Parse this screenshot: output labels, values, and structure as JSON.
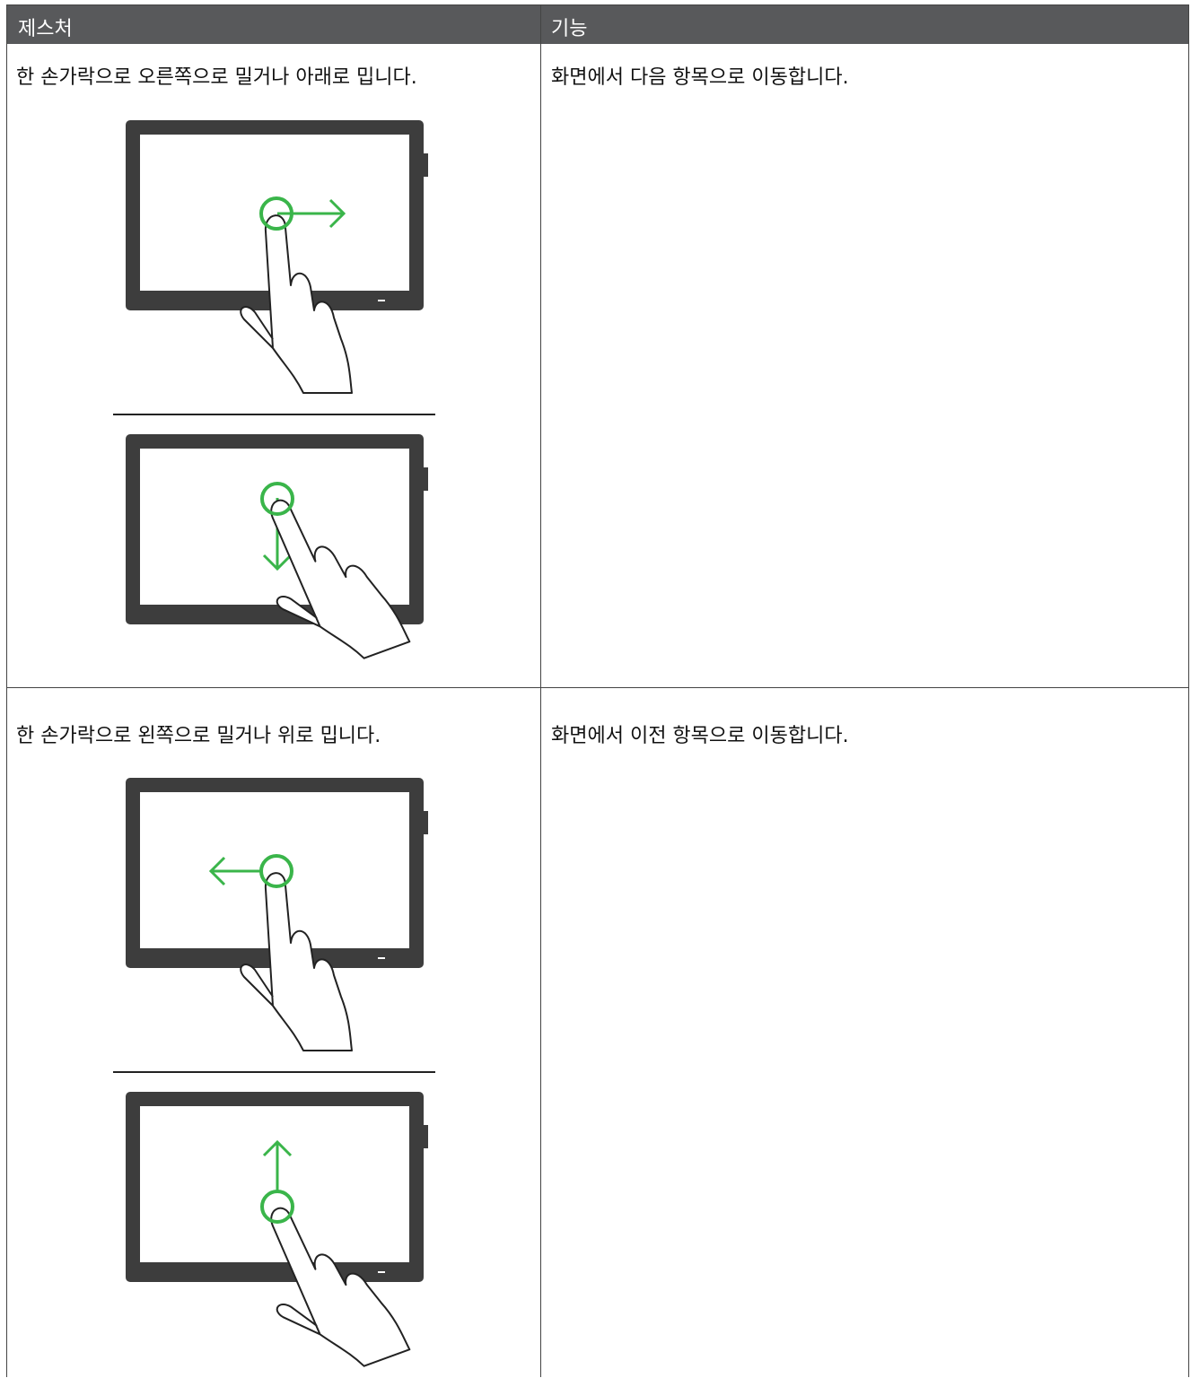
{
  "table": {
    "header": [
      "제스처",
      "기능"
    ],
    "rows": [
      [
        "한 손가락으로 오른쪽으로 밀거나 아래로 밉니다.",
        "화면에서 다음 항목으로 이동합니다."
      ],
      [
        "한 손가락으로 왼쪽으로 밀거나 위로 밉니다.",
        "화면에서 이전 항목으로 이동합니다."
      ]
    ]
  }
}
